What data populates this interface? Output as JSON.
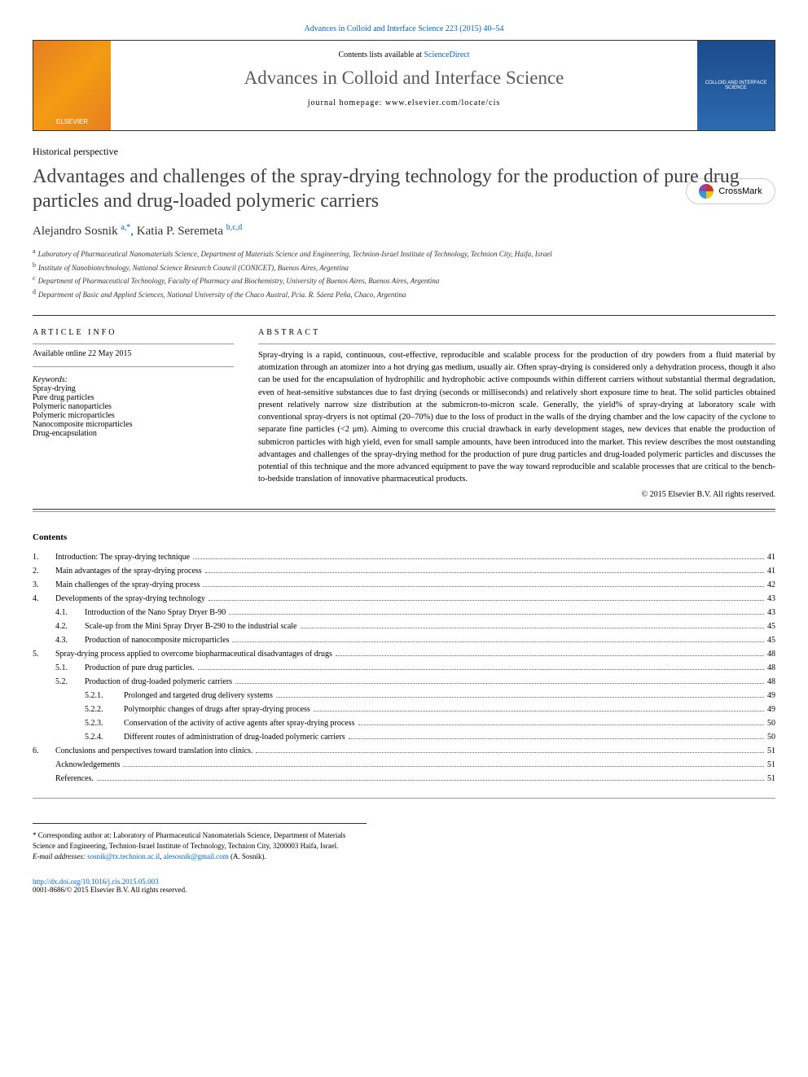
{
  "journalRef": "Advances in Colloid and Interface Science 223 (2015) 40–54",
  "header": {
    "publisherName": "ELSEVIER",
    "contentsPrefix": "Contents lists available at ",
    "contentsLink": "ScienceDirect",
    "journalTitle": "Advances in Colloid and Interface Science",
    "homepagePrefix": "journal homepage: ",
    "homepageUrl": "www.elsevier.com/locate/cis",
    "coverText": "COLLOID AND INTERFACE SCIENCE"
  },
  "crossmark": "CrossMark",
  "articleType": "Historical perspective",
  "title": "Advantages and challenges of the spray-drying technology for the production of pure drug particles and drug-loaded polymeric carriers",
  "authors": [
    {
      "name": "Alejandro Sosnik ",
      "sup": "a,*"
    },
    {
      "name": ", Katia P. Seremeta ",
      "sup": "b,c,d"
    }
  ],
  "affiliations": [
    {
      "sup": "a",
      "text": "Laboratory of Pharmaceutical Nanomaterials Science, Department of Materials Science and Engineering, Technion-Israel Institute of Technology, Technion City, Haifa, Israel"
    },
    {
      "sup": "b",
      "text": "Institute of Nanobiotechnology, National Science Research Council (CONICET), Buenos Aires, Argentina"
    },
    {
      "sup": "c",
      "text": "Department of Pharmaceutical Technology, Faculty of Pharmacy and Biochemistry, University of Buenos Aires, Buenos Aires, Argentina"
    },
    {
      "sup": "d",
      "text": "Department of Basic and Applied Sciences, National University of the Chaco Austral, Pcia. R. Sáenz Peña, Chaco, Argentina"
    }
  ],
  "articleInfo": {
    "heading": "article info",
    "available": "Available online 22 May 2015",
    "keywordsLabel": "Keywords:",
    "keywords": [
      "Spray-drying",
      "Pure drug particles",
      "Polymeric nanoparticles",
      "Polymeric microparticles",
      "Nanocomposite microparticles",
      "Drug-encapsulation"
    ]
  },
  "abstractHeading": "abstract",
  "abstractText": "Spray-drying is a rapid, continuous, cost-effective, reproducible and scalable process for the production of dry powders from a fluid material by atomization through an atomizer into a hot drying gas medium, usually air. Often spray-drying is considered only a dehydration process, though it also can be used for the encapsulation of hydrophilic and hydrophobic active compounds within different carriers without substantial thermal degradation, even of heat-sensitive substances due to fast drying (seconds or milliseconds) and relatively short exposure time to heat. The solid particles obtained present relatively narrow size distribution at the submicron-to-micron scale. Generally, the yield% of spray-drying at laboratory scale with conventional spray-dryers is not optimal (20–70%) due to the loss of product in the walls of the drying chamber and the low capacity of the cyclone to separate fine particles (<2 μm). Aiming to overcome this crucial drawback in early development stages, new devices that enable the production of submicron particles with high yield, even for small sample amounts, have been introduced into the market. This review describes the most outstanding advantages and challenges of the spray-drying method for the production of pure drug particles and drug-loaded polymeric particles and discusses the potential of this technique and the more advanced equipment to pave the way toward reproducible and scalable processes that are critical to the bench-to-bedside translation of innovative pharmaceutical products.",
  "copyright": "© 2015 Elsevier B.V. All rights reserved.",
  "contentsHeading": "Contents",
  "toc": [
    {
      "level": 1,
      "num": "1.",
      "title": "Introduction: The spray-drying technique",
      "page": "41"
    },
    {
      "level": 1,
      "num": "2.",
      "title": "Main advantages of the spray-drying process",
      "page": "41"
    },
    {
      "level": 1,
      "num": "3.",
      "title": "Main challenges of the spray-drying process",
      "page": "42"
    },
    {
      "level": 1,
      "num": "4.",
      "title": "Developments of the spray-drying technology",
      "page": "43"
    },
    {
      "level": 2,
      "num": "4.1.",
      "title": "Introduction of the Nano Spray Dryer B-90",
      "page": "43"
    },
    {
      "level": 2,
      "num": "4.2.",
      "title": "Scale-up from the Mini Spray Dryer B-290 to the industrial scale",
      "page": "45"
    },
    {
      "level": 2,
      "num": "4.3.",
      "title": "Production of nanocomposite microparticles",
      "page": "45"
    },
    {
      "level": 1,
      "num": "5.",
      "title": "Spray-drying process applied to overcome biopharmaceutical disadvantages of drugs",
      "page": "48"
    },
    {
      "level": 2,
      "num": "5.1.",
      "title": "Production of pure drug particles.",
      "page": "48"
    },
    {
      "level": 2,
      "num": "5.2.",
      "title": "Production of drug-loaded polymeric carriers",
      "page": "48"
    },
    {
      "level": 3,
      "num": "5.2.1.",
      "title": "Prolonged and targeted drug delivery systems",
      "page": "49"
    },
    {
      "level": 3,
      "num": "5.2.2.",
      "title": "Polymorphic changes of drugs after spray-drying process",
      "page": "49"
    },
    {
      "level": 3,
      "num": "5.2.3.",
      "title": "Conservation of the activity of active agents after spray-drying process",
      "page": "50"
    },
    {
      "level": 3,
      "num": "5.2.4.",
      "title": "Different routes of administration of drug-loaded polymeric carriers",
      "page": "50"
    },
    {
      "level": 1,
      "num": "6.",
      "title": "Conclusions and perspectives toward translation into clinics.",
      "page": "51"
    },
    {
      "level": 0,
      "num": "",
      "title": "Acknowledgements",
      "page": "51"
    },
    {
      "level": 0,
      "num": "",
      "title": "References.",
      "page": "51"
    }
  ],
  "correspondingNote": "* Corresponding author at: Laboratory of Pharmaceutical Nanomaterials Science, Department of Materials Science and Engineering, Technion-Israel Institute of Technology, Technion City, 3200003 Haifa, Israel.",
  "emailLabel": "E-mail addresses: ",
  "emails": [
    "sosnik@tx.technion.ac.il",
    "alesosnik@gmail.com"
  ],
  "emailSuffix": " (A. Sosnik).",
  "doi": "http://dx.doi.org/10.1016/j.cis.2015.05.003",
  "footerCopyright": "0001-8686/© 2015 Elsevier B.V. All rights reserved.",
  "colors": {
    "link": "#0066cc",
    "titleGray": "#404040",
    "journalGray": "#5a5a5a"
  }
}
